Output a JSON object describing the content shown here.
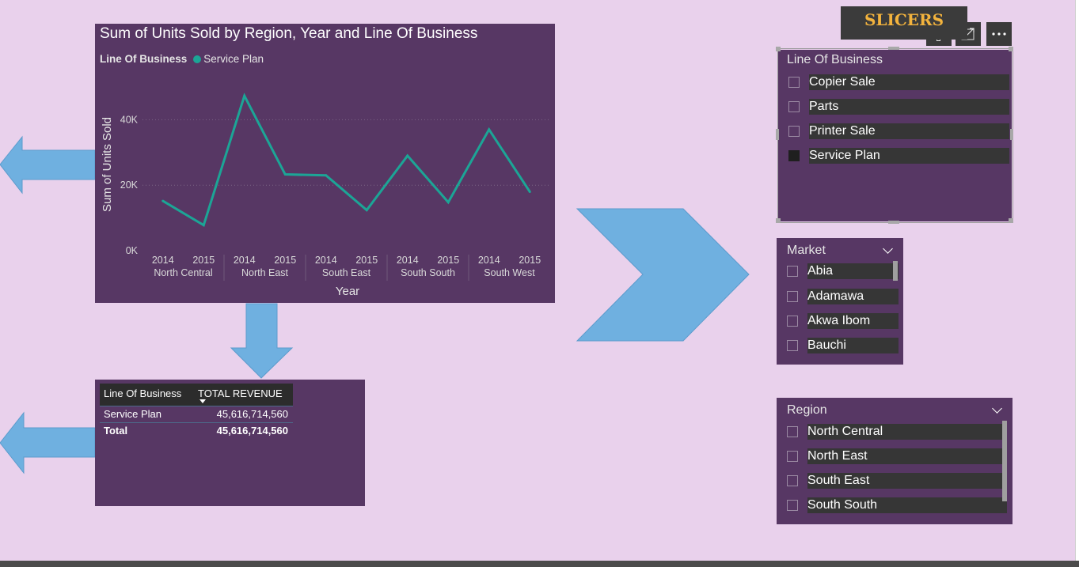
{
  "chart": {
    "title": "Sum of Units Sold by Region, Year and Line Of Business",
    "legend_title": "Line Of Business",
    "legend_item": "Service Plan",
    "ylabel": "Sum of Units Sold",
    "xlabel": "Year",
    "y_ticks": [
      "0K",
      "20K",
      "40K"
    ],
    "years": [
      "2014",
      "2015",
      "2014",
      "2015",
      "2014",
      "2015",
      "2014",
      "2015",
      "2014",
      "2015"
    ],
    "regions": [
      "North Central",
      "North East",
      "South East",
      "South South",
      "South West"
    ]
  },
  "chart_data": {
    "type": "line",
    "title": "Sum of Units Sold by Region, Year and Line Of Business",
    "xlabel": "Year",
    "ylabel": "Sum of Units Sold",
    "categories": [
      "North Central 2014",
      "North Central 2015",
      "North East 2014",
      "North East 2015",
      "South East 2014",
      "South East 2015",
      "South South 2014",
      "South South 2015",
      "South West 2014",
      "South West 2015"
    ],
    "series": [
      {
        "name": "Service Plan",
        "values": [
          15200,
          7800,
          47300,
          23300,
          23000,
          12400,
          29000,
          14800,
          37000,
          18000
        ]
      }
    ],
    "ylim": [
      0,
      50000
    ],
    "grid": true,
    "legend": "top-left",
    "colors": {
      "line": "#1ca596"
    }
  },
  "table": {
    "headers": [
      "Line Of Business",
      "TOTAL REVENUE"
    ],
    "rows": [
      {
        "name": "Service Plan",
        "value": "45,616,714,560"
      }
    ],
    "total": {
      "name": "Total",
      "value": "45,616,714,560"
    }
  },
  "badge": "SLICERS",
  "slicers": {
    "line_of_business": {
      "title": "Line Of Business",
      "items": [
        {
          "label": "Copier Sale",
          "checked": false
        },
        {
          "label": "Parts",
          "checked": false
        },
        {
          "label": "Printer Sale",
          "checked": false
        },
        {
          "label": "Service Plan",
          "checked": true
        }
      ]
    },
    "market": {
      "title": "Market",
      "items": [
        {
          "label": "Abia"
        },
        {
          "label": "Adamawa"
        },
        {
          "label": "Akwa Ibom"
        },
        {
          "label": "Bauchi"
        }
      ]
    },
    "region": {
      "title": "Region",
      "items": [
        {
          "label": "North Central"
        },
        {
          "label": "North East"
        },
        {
          "label": "South East"
        },
        {
          "label": "South South"
        }
      ]
    }
  },
  "icons": {
    "visual_header": [
      "filter-icon",
      "focus-mode-icon",
      "more-options-icon"
    ]
  },
  "colors": {
    "background": "#e9d1ec",
    "panel": "#573764",
    "line": "#1ca596",
    "arrow": "#6fb0e0",
    "badge_text": "#f3b33d"
  }
}
